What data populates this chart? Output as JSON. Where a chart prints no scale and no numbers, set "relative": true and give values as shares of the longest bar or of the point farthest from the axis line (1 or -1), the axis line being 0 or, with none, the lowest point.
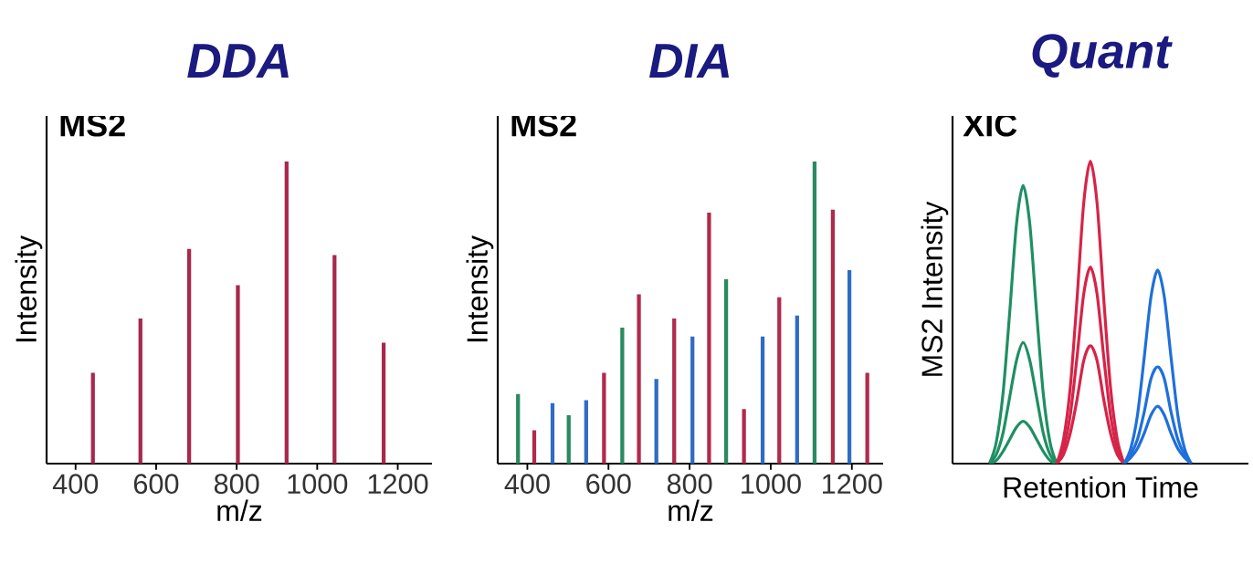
{
  "chart_data": [
    {
      "type": "bar",
      "title": "DDA",
      "subtitle": "MS2",
      "xlabel": "m/z",
      "ylabel": "Intensity",
      "relative": true,
      "tick_labels": "x",
      "xlim": [
        328,
        1285
      ],
      "xticks": [
        400,
        600,
        800,
        1000,
        1200
      ],
      "x": [
        443,
        561,
        682,
        803,
        924,
        1043,
        1165
      ],
      "values": [
        0.3,
        0.48,
        0.71,
        0.59,
        1,
        0.69,
        0.4
      ],
      "color": "#a8284c"
    },
    {
      "type": "bar",
      "title": "DIA",
      "subtitle": "MS2",
      "xlabel": "m/z",
      "ylabel": "Intensity",
      "relative": true,
      "tick_labels": "x",
      "xlim": [
        327,
        1277
      ],
      "xticks": [
        400,
        600,
        800,
        1000,
        1200
      ],
      "series": [
        {
          "color": "#2a8a62",
          "x": [
            377,
            502,
            634,
            890,
            1108
          ],
          "values": [
            0.23,
            0.16,
            0.45,
            0.61,
            1
          ]
        },
        {
          "color": "#b02a4c",
          "x": [
            417,
            589,
            675,
            762,
            848,
            934,
            1021,
            1153,
            1238
          ],
          "values": [
            0.11,
            0.3,
            0.56,
            0.48,
            0.83,
            0.18,
            0.55,
            0.84,
            0.3
          ]
        },
        {
          "color": "#2f6cc4",
          "x": [
            462,
            545,
            718,
            807,
            980,
            1065,
            1194
          ],
          "values": [
            0.2,
            0.21,
            0.28,
            0.42,
            0.42,
            0.49,
            0.64
          ]
        }
      ]
    },
    {
      "type": "line",
      "title": "Quant",
      "subtitle": "XIC",
      "xlabel": "Retention Time",
      "ylabel": "MS2 Intensity",
      "relative": true,
      "tick_labels": false,
      "categories": [
        null,
        null,
        null,
        null,
        null,
        null,
        null,
        null,
        null,
        null,
        null,
        null,
        null,
        null,
        null,
        null,
        null,
        null,
        null,
        null,
        null,
        null,
        null,
        null,
        null,
        null,
        null,
        null,
        null,
        null,
        null,
        null,
        null,
        null,
        null,
        null,
        null,
        null,
        null,
        null,
        null,
        null,
        null,
        null
      ],
      "series": [
        {
          "color": "#1f8f63",
          "values": [
            null,
            null,
            null,
            null,
            null,
            0,
            0.07,
            0.23,
            0.5,
            0.79,
            0.92,
            0.79,
            0.5,
            0.23,
            0.07,
            0,
            null,
            null,
            null,
            null,
            null,
            null,
            null,
            null,
            null,
            null,
            null,
            null,
            null,
            null,
            null,
            null,
            null,
            null,
            null,
            null,
            null,
            null,
            null,
            null,
            null,
            null,
            null,
            null
          ]
        },
        {
          "color": "#1f8f63",
          "values": [
            null,
            null,
            null,
            null,
            null,
            0,
            0.03,
            0.1,
            0.22,
            0.34,
            0.4,
            0.34,
            0.22,
            0.1,
            0.03,
            0,
            null,
            null,
            null,
            null,
            null,
            null,
            null,
            null,
            null,
            null,
            null,
            null,
            null,
            null,
            null,
            null,
            null,
            null,
            null,
            null,
            null,
            null,
            null,
            null,
            null,
            null,
            null,
            null
          ]
        },
        {
          "color": "#1f8f63",
          "values": [
            null,
            null,
            null,
            null,
            null,
            0,
            0.01,
            0.04,
            0.08,
            0.12,
            0.14,
            0.12,
            0.08,
            0.04,
            0.01,
            0,
            null,
            null,
            null,
            null,
            null,
            null,
            null,
            null,
            null,
            null,
            null,
            null,
            null,
            null,
            null,
            null,
            null,
            null,
            null,
            null,
            null,
            null,
            null,
            null,
            null,
            null,
            null,
            null
          ]
        },
        {
          "color": "#d62448",
          "values": [
            null,
            null,
            null,
            null,
            null,
            null,
            null,
            null,
            null,
            null,
            null,
            null,
            null,
            null,
            null,
            0,
            0.08,
            0.25,
            0.54,
            0.86,
            1,
            0.86,
            0.54,
            0.25,
            0.08,
            0,
            null,
            null,
            null,
            null,
            null,
            null,
            null,
            null,
            null,
            null,
            null,
            null,
            null,
            null,
            null,
            null,
            null,
            null
          ]
        },
        {
          "color": "#d62448",
          "values": [
            null,
            null,
            null,
            null,
            null,
            null,
            null,
            null,
            null,
            null,
            null,
            null,
            null,
            null,
            null,
            0,
            0.05,
            0.16,
            0.35,
            0.56,
            0.65,
            0.56,
            0.35,
            0.16,
            0.05,
            0,
            null,
            null,
            null,
            null,
            null,
            null,
            null,
            null,
            null,
            null,
            null,
            null,
            null,
            null,
            null,
            null,
            null,
            null
          ]
        },
        {
          "color": "#d62448",
          "values": [
            null,
            null,
            null,
            null,
            null,
            null,
            null,
            null,
            null,
            null,
            null,
            null,
            null,
            null,
            null,
            0,
            0.03,
            0.1,
            0.21,
            0.34,
            0.39,
            0.34,
            0.21,
            0.1,
            0.03,
            0,
            null,
            null,
            null,
            null,
            null,
            null,
            null,
            null,
            null,
            null,
            null,
            null,
            null,
            null,
            null,
            null,
            null,
            null
          ]
        },
        {
          "color": "#1f6fdc",
          "values": [
            null,
            null,
            null,
            null,
            null,
            null,
            null,
            null,
            null,
            null,
            null,
            null,
            null,
            null,
            null,
            null,
            null,
            null,
            null,
            null,
            null,
            null,
            null,
            null,
            null,
            0,
            0.05,
            0.16,
            0.35,
            0.55,
            0.64,
            0.55,
            0.35,
            0.16,
            0.05,
            0,
            null,
            null,
            null,
            null,
            null,
            null,
            null,
            null
          ]
        },
        {
          "color": "#1f6fdc",
          "values": [
            null,
            null,
            null,
            null,
            null,
            null,
            null,
            null,
            null,
            null,
            null,
            null,
            null,
            null,
            null,
            null,
            null,
            null,
            null,
            null,
            null,
            null,
            null,
            null,
            null,
            0,
            0.03,
            0.08,
            0.17,
            0.28,
            0.32,
            0.28,
            0.17,
            0.08,
            0.03,
            0,
            null,
            null,
            null,
            null,
            null,
            null,
            null,
            null
          ]
        },
        {
          "color": "#1f6fdc",
          "values": [
            null,
            null,
            null,
            null,
            null,
            null,
            null,
            null,
            null,
            null,
            null,
            null,
            null,
            null,
            null,
            null,
            null,
            null,
            null,
            null,
            null,
            null,
            null,
            null,
            null,
            0,
            0.02,
            0.05,
            0.1,
            0.16,
            0.19,
            0.16,
            0.1,
            0.05,
            0.02,
            0,
            null,
            null,
            null,
            null,
            null,
            null,
            null,
            null
          ]
        }
      ]
    }
  ]
}
